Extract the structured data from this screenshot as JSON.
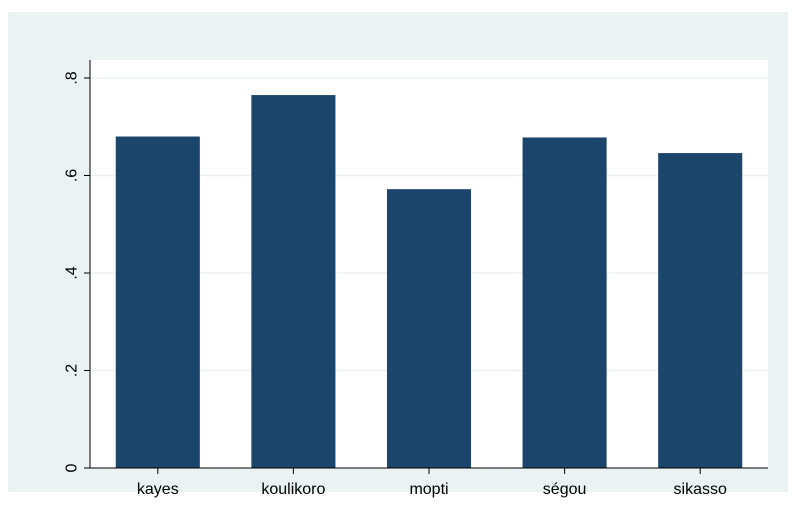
{
  "chart_data": {
    "type": "bar",
    "title": "",
    "xlabel": "",
    "ylabel": "",
    "categories": [
      "kayes",
      "koulikoro",
      "mopti",
      "ségou",
      "sikasso"
    ],
    "values": [
      0.68,
      0.765,
      0.572,
      0.678,
      0.646
    ],
    "ylim": [
      0,
      0.8
    ],
    "yticks": [
      0,
      0.2,
      0.4,
      0.6,
      0.8
    ],
    "ytick_labels": [
      "0",
      ".2",
      ".4",
      ".6",
      ".8"
    ],
    "grid": true,
    "legend": "none",
    "colors": {
      "bar": "#1c456b",
      "plot_background": "#ffffff",
      "outer_background": "#eaf2f3",
      "grid": "#eaf2f3",
      "axis": "#000000"
    }
  }
}
